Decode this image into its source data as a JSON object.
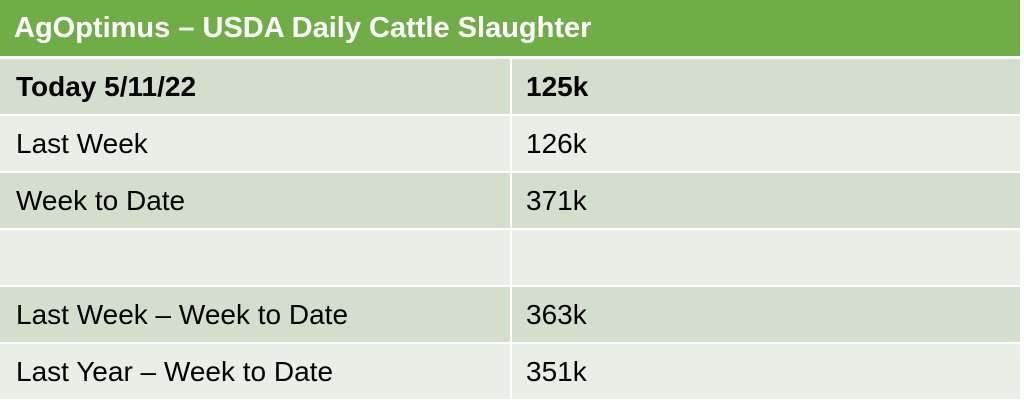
{
  "title": "AgOptimus – USDA Daily Cattle Slaughter",
  "rows": [
    {
      "label": "Today 5/11/22",
      "value": "125k"
    },
    {
      "label": "Last Week",
      "value": "126k"
    },
    {
      "label": "Week to Date",
      "value": "371k"
    },
    {
      "label": "",
      "value": ""
    },
    {
      "label": "Last Week – Week to Date",
      "value": "363k"
    },
    {
      "label": "Last Year – Week to Date",
      "value": "351k"
    }
  ],
  "colors": {
    "header": "#70ad47",
    "row_dark": "#d3dfcc",
    "row_light": "#e9efe6"
  }
}
